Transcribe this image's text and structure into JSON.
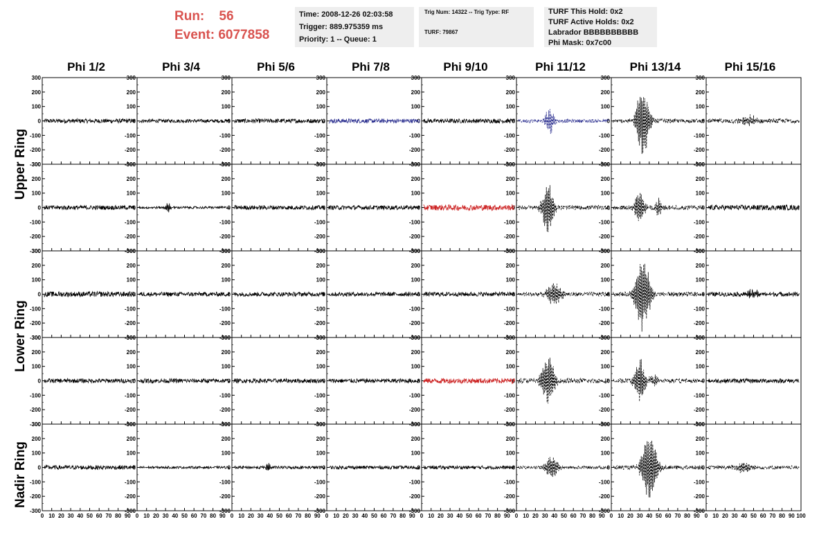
{
  "header": {
    "run_label": "Run:",
    "run_value": "56",
    "event_label": "Event:",
    "event_value": "6077858",
    "time_line": "Time: 2008-12-26 02:03:58",
    "trigger_line": "Trigger: 889.975359 ms",
    "priority_line": "Priority: 1 -- Queue: 1",
    "trig_line": "Trig Num: 14322 -- Trig Type: RF",
    "turf_line": "TURF: 79867",
    "turf_hold_line": "TURF This Hold: 0x2",
    "turf_active_line": "TURF Active Holds: 0x2",
    "labrador_line": "Labrador BBBBBBBBBB",
    "phi_mask_line": "Phi Mask: 0x7c00"
  },
  "columns": [
    "Phi 1/2",
    "Phi 3/4",
    "Phi 5/6",
    "Phi 7/8",
    "Phi 9/10",
    "Phi 11/12",
    "Phi 13/14",
    "Phi 15/16"
  ],
  "row_labels": [
    "Upper Ring",
    "Lower Ring",
    "Nadir Ring"
  ],
  "colors": {
    "run_text": "#d9534f",
    "info_bg": "#eeeeee",
    "trace": "#000000",
    "trace_blue": "#2b2f8f",
    "trace_red": "#cc2222"
  },
  "chart_data": {
    "type": "line",
    "grid": false,
    "rows": 5,
    "xlim": [
      0,
      100
    ],
    "ylim": [
      -300,
      300
    ],
    "x_ticks": [
      0,
      10,
      20,
      30,
      40,
      50,
      60,
      70,
      80,
      90
    ],
    "y_ticks": [
      300,
      200,
      100,
      0,
      -100,
      -200,
      -300
    ],
    "panels": [
      {
        "row": 0,
        "col": 0,
        "style": "solid",
        "color": "black",
        "noise": 15,
        "bursts": []
      },
      {
        "row": 0,
        "col": 1,
        "style": "solid",
        "color": "black",
        "noise": 12,
        "bursts": []
      },
      {
        "row": 0,
        "col": 2,
        "style": "solid",
        "color": "black",
        "noise": 15,
        "bursts": []
      },
      {
        "row": 0,
        "col": 3,
        "style": "solid",
        "color": "blue",
        "noise": 15,
        "bursts": []
      },
      {
        "row": 0,
        "col": 4,
        "style": "solid",
        "color": "black",
        "noise": 15,
        "bursts": []
      },
      {
        "row": 0,
        "col": 5,
        "style": "dashed",
        "color": "blue",
        "noise": 12,
        "bursts": [
          {
            "center": 35,
            "amp": 100,
            "width": 5
          }
        ]
      },
      {
        "row": 0,
        "col": 6,
        "style": "dashed",
        "color": "black",
        "noise": 14,
        "bursts": [
          {
            "center": 33,
            "amp": 270,
            "width": 7
          }
        ]
      },
      {
        "row": 0,
        "col": 7,
        "style": "dashed",
        "color": "black",
        "noise": 15,
        "bursts": [
          {
            "center": 45,
            "amp": 40,
            "width": 10
          }
        ]
      },
      {
        "row": 1,
        "col": 0,
        "style": "solid",
        "color": "black",
        "noise": 15,
        "bursts": []
      },
      {
        "row": 1,
        "col": 1,
        "style": "solid",
        "color": "black",
        "noise": 8,
        "bursts": [
          {
            "center": 33,
            "amp": 40,
            "width": 3
          }
        ]
      },
      {
        "row": 1,
        "col": 2,
        "style": "solid",
        "color": "black",
        "noise": 15,
        "bursts": []
      },
      {
        "row": 1,
        "col": 3,
        "style": "solid",
        "color": "black",
        "noise": 15,
        "bursts": []
      },
      {
        "row": 1,
        "col": 4,
        "style": "solid",
        "color": "red",
        "noise": 20,
        "bursts": []
      },
      {
        "row": 1,
        "col": 5,
        "style": "dashed",
        "color": "black",
        "noise": 15,
        "bursts": [
          {
            "center": 33,
            "amp": 200,
            "width": 6
          }
        ]
      },
      {
        "row": 1,
        "col": 6,
        "style": "dashed",
        "color": "black",
        "noise": 15,
        "bursts": [
          {
            "center": 30,
            "amp": 140,
            "width": 5
          },
          {
            "center": 50,
            "amp": 60,
            "width": 4
          }
        ]
      },
      {
        "row": 1,
        "col": 7,
        "style": "solid",
        "color": "black",
        "noise": 18,
        "bursts": []
      },
      {
        "row": 2,
        "col": 0,
        "style": "solid",
        "color": "black",
        "noise": 18,
        "bursts": []
      },
      {
        "row": 2,
        "col": 1,
        "style": "solid",
        "color": "black",
        "noise": 15,
        "bursts": []
      },
      {
        "row": 2,
        "col": 2,
        "style": "solid",
        "color": "black",
        "noise": 15,
        "bursts": []
      },
      {
        "row": 2,
        "col": 3,
        "style": "solid",
        "color": "black",
        "noise": 15,
        "bursts": []
      },
      {
        "row": 2,
        "col": 4,
        "style": "solid",
        "color": "black",
        "noise": 15,
        "bursts": []
      },
      {
        "row": 2,
        "col": 5,
        "style": "dashed",
        "color": "black",
        "noise": 15,
        "bursts": [
          {
            "center": 40,
            "amp": 80,
            "width": 8
          }
        ]
      },
      {
        "row": 2,
        "col": 6,
        "style": "dashed",
        "color": "black",
        "noise": 15,
        "bursts": [
          {
            "center": 33,
            "amp": 270,
            "width": 8
          }
        ]
      },
      {
        "row": 2,
        "col": 7,
        "style": "solid",
        "color": "black",
        "noise": 15,
        "bursts": [
          {
            "center": 50,
            "amp": 30,
            "width": 8
          }
        ]
      },
      {
        "row": 3,
        "col": 0,
        "style": "solid",
        "color": "black",
        "noise": 15,
        "bursts": []
      },
      {
        "row": 3,
        "col": 1,
        "style": "solid",
        "color": "black",
        "noise": 15,
        "bursts": []
      },
      {
        "row": 3,
        "col": 2,
        "style": "solid",
        "color": "black",
        "noise": 15,
        "bursts": []
      },
      {
        "row": 3,
        "col": 3,
        "style": "solid",
        "color": "black",
        "noise": 15,
        "bursts": []
      },
      {
        "row": 3,
        "col": 4,
        "style": "solid",
        "color": "red",
        "noise": 18,
        "bursts": []
      },
      {
        "row": 3,
        "col": 5,
        "style": "dashed",
        "color": "black",
        "noise": 18,
        "bursts": [
          {
            "center": 33,
            "amp": 200,
            "width": 7
          }
        ]
      },
      {
        "row": 3,
        "col": 6,
        "style": "dashed",
        "color": "black",
        "noise": 15,
        "bursts": [
          {
            "center": 30,
            "amp": 160,
            "width": 6
          },
          {
            "center": 45,
            "amp": 40,
            "width": 5
          }
        ]
      },
      {
        "row": 3,
        "col": 7,
        "style": "solid",
        "color": "black",
        "noise": 15,
        "bursts": []
      },
      {
        "row": 4,
        "col": 0,
        "style": "solid",
        "color": "black",
        "noise": 15,
        "bursts": []
      },
      {
        "row": 4,
        "col": 1,
        "style": "solid",
        "color": "black",
        "noise": 8,
        "bursts": []
      },
      {
        "row": 4,
        "col": 2,
        "style": "solid",
        "color": "black",
        "noise": 10,
        "bursts": [
          {
            "center": 38,
            "amp": 30,
            "width": 3
          }
        ]
      },
      {
        "row": 4,
        "col": 3,
        "style": "solid",
        "color": "black",
        "noise": 12,
        "bursts": []
      },
      {
        "row": 4,
        "col": 4,
        "style": "solid",
        "color": "black",
        "noise": 12,
        "bursts": []
      },
      {
        "row": 4,
        "col": 5,
        "style": "dashed",
        "color": "black",
        "noise": 10,
        "bursts": [
          {
            "center": 37,
            "amp": 80,
            "width": 8
          }
        ]
      },
      {
        "row": 4,
        "col": 6,
        "style": "dashed",
        "color": "black",
        "noise": 14,
        "bursts": [
          {
            "center": 40,
            "amp": 280,
            "width": 8
          }
        ]
      },
      {
        "row": 4,
        "col": 7,
        "style": "dashed",
        "color": "black",
        "noise": 12,
        "bursts": [
          {
            "center": 40,
            "amp": 40,
            "width": 10
          }
        ]
      }
    ]
  }
}
